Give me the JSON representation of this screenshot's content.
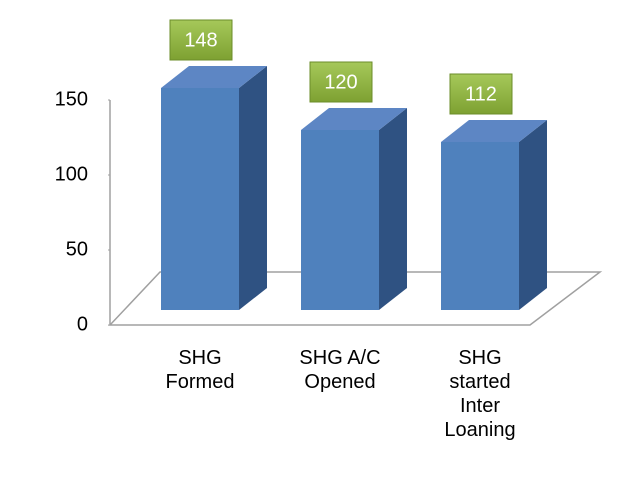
{
  "chart_data": {
    "type": "bar3d",
    "categories": [
      "SHG Formed",
      "SHG A/C Opened",
      "SHG started Inter Loaning"
    ],
    "values": [
      148,
      120,
      112
    ],
    "color": "#4f81bd",
    "ylim": [
      0,
      150
    ],
    "yticks": [
      0,
      50,
      100,
      150
    ]
  }
}
